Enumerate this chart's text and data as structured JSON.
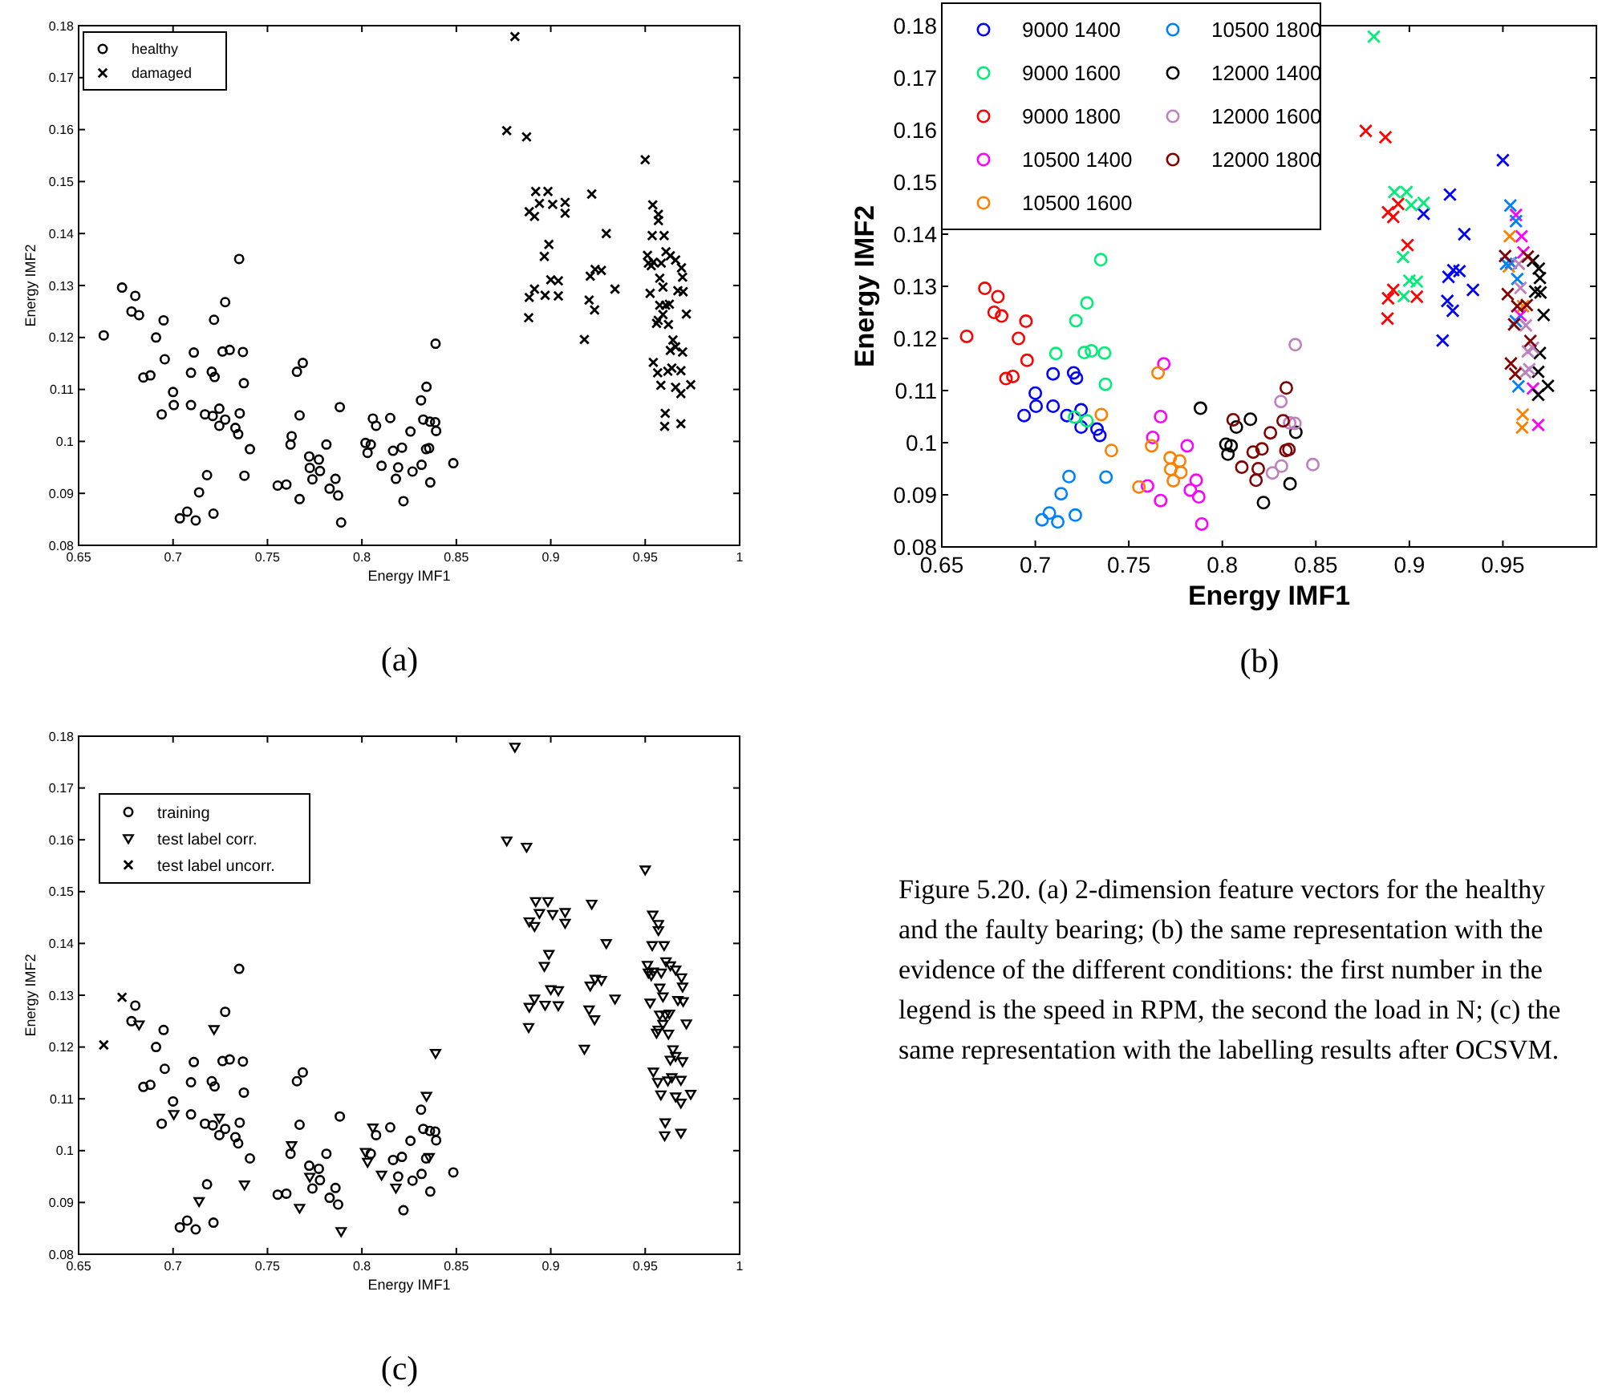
{
  "chart_data": [
    {
      "type": "scatter",
      "title": "(a)",
      "xlabel": "Energy IMF1",
      "ylabel": "Energy IMF2",
      "xlim": [
        0.65,
        1
      ],
      "ylim": [
        0.08,
        0.18
      ],
      "xticks": [
        0.65,
        0.7,
        0.75,
        0.8,
        0.85,
        0.9,
        0.95,
        1
      ],
      "yticks": [
        0.08,
        0.09,
        0.1,
        0.11,
        0.12,
        0.13,
        0.14,
        0.15,
        0.16,
        0.17,
        0.18
      ],
      "legend": "top left",
      "series": [
        {
          "name": "healthy",
          "color": "#000000",
          "marker": "circle",
          "x": [
            0.7,
            0.7004,
            0.694,
            0.7095,
            0.7095,
            0.7205,
            0.722,
            0.7169,
            0.7245,
            0.7245,
            0.733,
            0.7345,
            0.735,
            0.7276,
            0.7217,
            0.711,
            0.7262,
            0.73,
            0.737,
            0.7375,
            0.721,
            0.7276,
            0.6633,
            0.673,
            0.68,
            0.678,
            0.682,
            0.695,
            0.691,
            0.6956,
            0.6843,
            0.688,
            0.7687,
            0.767,
            0.7628,
            0.76,
            0.767,
            0.7812,
            0.786,
            0.7829,
            0.7874,
            0.789,
            0.7353,
            0.7407,
            0.7656,
            0.7622,
            0.7554,
            0.7721,
            0.7772,
            0.7724,
            0.7738,
            0.7778,
            0.718,
            0.7138,
            0.7036,
            0.7075,
            0.712,
            0.7214,
            0.7378,
            0.7883,
            0.815,
            0.8075,
            0.8019,
            0.8047,
            0.803,
            0.822,
            0.8362,
            0.8393,
            0.8313,
            0.836,
            0.8388,
            0.8268,
            0.8316,
            0.8484,
            0.839,
            0.8058,
            0.8104,
            0.8165,
            0.8192,
            0.818,
            0.8212,
            0.8257,
            0.8342,
            0.8325,
            0.834,
            0.8356
          ],
          "values": [
            0.1095,
            0.107,
            0.1052,
            0.107,
            0.1132,
            0.1134,
            0.1124,
            0.1052,
            0.1063,
            0.103,
            0.1026,
            0.1014,
            0.1351,
            0.1268,
            0.1234,
            0.1171,
            0.1173,
            0.1176,
            0.1172,
            0.1112,
            0.1049,
            0.1042,
            0.1204,
            0.1296,
            0.128,
            0.125,
            0.1243,
            0.1233,
            0.12,
            0.1158,
            0.1123,
            0.1127,
            0.1151,
            0.105,
            0.101,
            0.0917,
            0.0889,
            0.0994,
            0.0928,
            0.0909,
            0.0896,
            0.0844,
            0.1054,
            0.0985,
            0.1134,
            0.0994,
            0.0915,
            0.0971,
            0.0965,
            0.0949,
            0.0927,
            0.0943,
            0.0935,
            0.0902,
            0.0852,
            0.0865,
            0.0848,
            0.0861,
            0.0934,
            0.1066,
            0.1045,
            0.103,
            0.0997,
            0.0994,
            0.0978,
            0.0885,
            0.0921,
            0.102,
            0.1079,
            0.1038,
            0.1037,
            0.0942,
            0.0955,
            0.0958,
            0.1188,
            0.1044,
            0.0953,
            0.0982,
            0.095,
            0.0928,
            0.0988,
            0.1019,
            0.1105,
            0.1042,
            0.0985,
            0.0987
          ]
        },
        {
          "name": "damaged",
          "color": "#000000",
          "marker": "cross",
          "x": [
            0.8767,
            0.8872,
            0.8886,
            0.8914,
            0.894,
            0.899,
            0.8914,
            0.8886,
            0.904,
            0.8883,
            0.881,
            0.892,
            0.8985,
            0.901,
            0.9076,
            0.8966,
            0.9,
            0.904,
            0.897,
            0.9076,
            0.9217,
            0.9294,
            0.9209,
            0.9235,
            0.9268,
            0.934,
            0.9203,
            0.9232,
            0.9178,
            0.95,
            0.954,
            0.957,
            0.9517,
            0.9543,
            0.9577,
            0.9569,
            0.9583,
            0.957,
            0.96,
            0.961,
            0.9594,
            0.9661,
            0.9689,
            0.9537,
            0.9532,
            0.9608,
            0.9606,
            0.9603,
            0.9661,
            0.9692,
            0.9698,
            0.9673,
            0.9701,
            0.9718,
            0.9698,
            0.9689,
            0.9741,
            0.9689,
            0.9512,
            0.9526,
            0.9577,
            0.9628,
            0.956,
            0.9647,
            0.9543,
            0.9566,
            0.9633,
            0.9585,
            0.9594,
            0.9623,
            0.9661,
            0.962,
            0.9641,
            0.9633
          ],
          "values": [
            0.1598,
            0.1586,
            0.1442,
            0.1433,
            0.1458,
            0.1379,
            0.1293,
            0.1277,
            0.128,
            0.1238,
            0.1779,
            0.1481,
            0.1481,
            0.1456,
            0.146,
            0.1356,
            0.1311,
            0.1309,
            0.1281,
            0.1439,
            0.1476,
            0.14,
            0.1318,
            0.1331,
            0.1329,
            0.1293,
            0.1272,
            0.1253,
            0.1196,
            0.1542,
            0.1455,
            0.1425,
            0.1343,
            0.1345,
            0.1314,
            0.1233,
            0.1108,
            0.1437,
            0.1396,
            0.1365,
            0.1244,
            0.1104,
            0.1034,
            0.1396,
            0.1338,
            0.1262,
            0.1054,
            0.1029,
            0.1349,
            0.1334,
            0.1316,
            0.129,
            0.1288,
            0.1245,
            0.1172,
            0.1136,
            0.1109,
            0.1092,
            0.1358,
            0.1285,
            0.1262,
            0.1264,
            0.1227,
            0.1195,
            0.1152,
            0.1132,
            0.1357,
            0.1343,
            0.1297,
            0.1225,
            0.1182,
            0.1135,
            0.1141,
            0.1175
          ]
        }
      ]
    },
    {
      "type": "scatter",
      "title": "(b)",
      "xlabel": "Energy IMF1",
      "ylabel": "Energy IMF2",
      "xlim": [
        0.65,
        1
      ],
      "ylim": [
        0.08,
        0.18
      ],
      "xticks": [
        0.65,
        0.7,
        0.75,
        0.8,
        0.85,
        0.9,
        0.95
      ],
      "yticks": [
        0.08,
        0.09,
        0.1,
        0.11,
        0.12,
        0.13,
        0.14,
        0.15,
        0.16,
        0.17,
        0.18
      ],
      "legend": "top left",
      "series": [
        {
          "name": "9000 1400",
          "color": "#0000ff",
          "marker": "circle",
          "x": [
            0.7,
            0.7004,
            0.694,
            0.7095,
            0.7095,
            0.7205,
            0.722,
            0.7169,
            0.7245,
            0.7245,
            0.733,
            0.7345
          ],
          "values": [
            0.1095,
            0.107,
            0.1052,
            0.107,
            0.1132,
            0.1134,
            0.1124,
            0.1052,
            0.1063,
            0.103,
            0.1026,
            0.1014
          ]
        },
        {
          "name": "9000 1600",
          "color": "#00ee77",
          "marker": "circle",
          "x": [
            0.735,
            0.7276,
            0.7217,
            0.711,
            0.7262,
            0.73,
            0.737,
            0.7375,
            0.721,
            0.7276
          ],
          "values": [
            0.1351,
            0.1268,
            0.1234,
            0.1171,
            0.1173,
            0.1176,
            0.1172,
            0.1112,
            0.1049,
            0.1042
          ]
        },
        {
          "name": "9000 1800",
          "color": "#ff0000",
          "marker": "circle",
          "x": [
            0.6633,
            0.673,
            0.68,
            0.678,
            0.682,
            0.695,
            0.691,
            0.6956,
            0.6843,
            0.688
          ],
          "values": [
            0.1204,
            0.1296,
            0.128,
            0.125,
            0.1243,
            0.1233,
            0.12,
            0.1158,
            0.1123,
            0.1127
          ]
        },
        {
          "name": "10500 1400",
          "color": "#ff00ff",
          "marker": "circle",
          "x": [
            0.7687,
            0.767,
            0.7628,
            0.76,
            0.767,
            0.7812,
            0.786,
            0.7829,
            0.7874,
            0.789
          ],
          "values": [
            0.1151,
            0.105,
            0.101,
            0.0917,
            0.0889,
            0.0994,
            0.0928,
            0.0909,
            0.0896,
            0.0844
          ]
        },
        {
          "name": "10500 1600",
          "color": "#ff8000",
          "marker": "circle",
          "x": [
            0.7353,
            0.7407,
            0.7656,
            0.7622,
            0.7554,
            0.7721,
            0.7772,
            0.7724,
            0.7738,
            0.7778
          ],
          "values": [
            0.1054,
            0.0985,
            0.1134,
            0.0994,
            0.0915,
            0.0971,
            0.0965,
            0.0949,
            0.0927,
            0.0943
          ]
        },
        {
          "name": "10500 1800",
          "color": "#0080ff",
          "marker": "circle",
          "x": [
            0.718,
            0.7138,
            0.7036,
            0.7075,
            0.712,
            0.7214,
            0.7378
          ],
          "values": [
            0.0935,
            0.0902,
            0.0852,
            0.0865,
            0.0848,
            0.0861,
            0.0934
          ]
        },
        {
          "name": "12000 1400",
          "color": "#000000",
          "marker": "circle",
          "x": [
            0.7883,
            0.815,
            0.8075,
            0.8019,
            0.8047,
            0.803,
            0.822,
            0.8362,
            0.8393
          ],
          "values": [
            0.1066,
            0.1045,
            0.103,
            0.0997,
            0.0994,
            0.0978,
            0.0885,
            0.0921,
            0.102
          ]
        },
        {
          "name": "12000 1600",
          "color": "#bf80bf",
          "marker": "circle",
          "x": [
            0.8313,
            0.836,
            0.8388,
            0.8268,
            0.8316,
            0.8484,
            0.839
          ],
          "values": [
            0.1079,
            0.1038,
            0.1037,
            0.0942,
            0.0955,
            0.0958,
            0.1188
          ]
        },
        {
          "name": "12000 1800",
          "color": "#800000",
          "marker": "circle",
          "x": [
            0.8058,
            0.8104,
            0.8165,
            0.8192,
            0.818,
            0.8212,
            0.8257,
            0.8342,
            0.8325,
            0.834,
            0.8356
          ],
          "values": [
            0.1044,
            0.0953,
            0.0982,
            0.095,
            0.0928,
            0.0988,
            0.1019,
            0.1105,
            0.1042,
            0.0985,
            0.0987
          ]
        },
        {
          "color": "#0000ff",
          "marker": "cross",
          "x": [
            0.9076,
            0.9217,
            0.9294,
            0.9209,
            0.9235,
            0.9268,
            0.934,
            0.9203,
            0.9232,
            0.9178,
            0.95
          ],
          "values": [
            0.1439,
            0.1476,
            0.14,
            0.1318,
            0.1331,
            0.1329,
            0.1293,
            0.1272,
            0.1253,
            0.1196,
            0.1542
          ]
        },
        {
          "color": "#00ee77",
          "marker": "cross",
          "x": [
            0.881,
            0.892,
            0.8985,
            0.901,
            0.9076,
            0.8966,
            0.9,
            0.904,
            0.897
          ],
          "values": [
            0.1779,
            0.1481,
            0.1481,
            0.1456,
            0.146,
            0.1356,
            0.1311,
            0.1309,
            0.1281
          ]
        },
        {
          "color": "#ff0000",
          "marker": "cross",
          "x": [
            0.8767,
            0.8872,
            0.8886,
            0.8914,
            0.894,
            0.899,
            0.8914,
            0.8886,
            0.904,
            0.8883
          ],
          "values": [
            0.1598,
            0.1586,
            0.1442,
            0.1433,
            0.1458,
            0.1379,
            0.1293,
            0.1277,
            0.128,
            0.1238
          ]
        },
        {
          "color": "#ff00ff",
          "marker": "cross",
          "x": [
            0.957,
            0.96,
            0.961,
            0.9594,
            0.9661,
            0.9689
          ],
          "values": [
            0.1437,
            0.1396,
            0.1365,
            0.1244,
            0.1104,
            0.1034
          ]
        },
        {
          "color": "#ff8000",
          "marker": "cross",
          "x": [
            0.9537,
            0.9532,
            0.9608,
            0.9606,
            0.9603
          ],
          "values": [
            0.1396,
            0.1338,
            0.1262,
            0.1054,
            0.1029
          ]
        },
        {
          "color": "#0080ff",
          "marker": "cross",
          "x": [
            0.954,
            0.957,
            0.9517,
            0.9543,
            0.9577,
            0.9569,
            0.9583
          ],
          "values": [
            0.1455,
            0.1425,
            0.1343,
            0.1345,
            0.1314,
            0.1233,
            0.1108
          ]
        },
        {
          "color": "#000000",
          "marker": "cross",
          "x": [
            0.9661,
            0.9692,
            0.9698,
            0.9673,
            0.9701,
            0.9718,
            0.9698,
            0.9689,
            0.9741,
            0.9689
          ],
          "values": [
            0.1349,
            0.1334,
            0.1316,
            0.129,
            0.1288,
            0.1245,
            0.1172,
            0.1136,
            0.1109,
            0.1092
          ]
        },
        {
          "color": "#bf80bf",
          "marker": "cross",
          "x": [
            0.9585,
            0.9594,
            0.9623,
            0.9661,
            0.962,
            0.9641,
            0.9633
          ],
          "values": [
            0.1343,
            0.1297,
            0.1225,
            0.1182,
            0.1135,
            0.1141,
            0.1175
          ]
        },
        {
          "color": "#800000",
          "marker": "cross",
          "x": [
            0.9512,
            0.9526,
            0.9577,
            0.9628,
            0.956,
            0.9647,
            0.9543,
            0.9566,
            0.9633
          ],
          "values": [
            0.1358,
            0.1285,
            0.1262,
            0.1264,
            0.1227,
            0.1195,
            0.1152,
            0.1132,
            0.1357
          ]
        }
      ]
    },
    {
      "type": "scatter",
      "title": "(c)",
      "xlabel": "Energy IMF1",
      "ylabel": "Energy IMF2",
      "xlim": [
        0.65,
        1
      ],
      "ylim": [
        0.08,
        0.18
      ],
      "xticks": [
        0.65,
        0.7,
        0.75,
        0.8,
        0.85,
        0.9,
        0.95,
        1
      ],
      "yticks": [
        0.08,
        0.09,
        0.1,
        0.11,
        0.12,
        0.13,
        0.14,
        0.15,
        0.16,
        0.17,
        0.18
      ],
      "legend": "top left",
      "series": [
        {
          "name": "training",
          "color": "#000000",
          "marker": "circle",
          "x": [
            0.68,
            0.678,
            0.695,
            0.691,
            0.6956,
            0.6843,
            0.688,
            0.7,
            0.694,
            0.7095,
            0.7095,
            0.7205,
            0.722,
            0.7169,
            0.7245,
            0.733,
            0.7345,
            0.735,
            0.7276,
            0.711,
            0.7262,
            0.73,
            0.737,
            0.7375,
            0.721,
            0.7276,
            0.7687,
            0.767,
            0.76,
            0.7812,
            0.786,
            0.7829,
            0.7874,
            0.7353,
            0.7407,
            0.7656,
            0.7622,
            0.7554,
            0.7721,
            0.7772,
            0.7738,
            0.7778,
            0.718,
            0.7036,
            0.7075,
            0.712,
            0.7214,
            0.7883,
            0.815,
            0.8075,
            0.8047,
            0.822,
            0.8362,
            0.8393,
            0.8313,
            0.836,
            0.8388,
            0.8268,
            0.8316,
            0.8484,
            0.8165,
            0.8192,
            0.8212,
            0.8257,
            0.8325,
            0.834
          ],
          "values": [
            0.128,
            0.125,
            0.1233,
            0.12,
            0.1158,
            0.1123,
            0.1127,
            0.1095,
            0.1052,
            0.107,
            0.1132,
            0.1134,
            0.1124,
            0.1052,
            0.103,
            0.1026,
            0.1014,
            0.1351,
            0.1268,
            0.1171,
            0.1173,
            0.1176,
            0.1172,
            0.1112,
            0.1049,
            0.1042,
            0.1151,
            0.105,
            0.0917,
            0.0994,
            0.0928,
            0.0909,
            0.0896,
            0.1054,
            0.0985,
            0.1134,
            0.0994,
            0.0915,
            0.0971,
            0.0965,
            0.0927,
            0.0943,
            0.0935,
            0.0852,
            0.0865,
            0.0848,
            0.0861,
            0.1066,
            0.1045,
            0.103,
            0.0994,
            0.0885,
            0.0921,
            0.102,
            0.1079,
            0.1038,
            0.1037,
            0.0942,
            0.0955,
            0.0958,
            0.0982,
            0.095,
            0.0988,
            0.1019,
            0.1042,
            0.0985
          ]
        },
        {
          "name": "test label corr.",
          "color": "#000000",
          "marker": "triangle",
          "x": [
            0.682,
            0.7217,
            0.7004,
            0.7245,
            0.7138,
            0.7378,
            0.7628,
            0.7724,
            0.767,
            0.789,
            0.8019,
            0.803,
            0.8058,
            0.8104,
            0.818,
            0.8342,
            0.839,
            0.8356,
            0.8767,
            0.8872,
            0.8886,
            0.8914,
            0.894,
            0.899,
            0.8914,
            0.8886,
            0.904,
            0.8883,
            0.881,
            0.892,
            0.8985,
            0.901,
            0.9076,
            0.8966,
            0.9,
            0.904,
            0.897,
            0.9076,
            0.9217,
            0.9294,
            0.9209,
            0.9235,
            0.9268,
            0.934,
            0.9203,
            0.9232,
            0.9178,
            0.95,
            0.954,
            0.957,
            0.9517,
            0.9543,
            0.9577,
            0.9569,
            0.9583,
            0.957,
            0.96,
            0.961,
            0.9594,
            0.9661,
            0.9689,
            0.9537,
            0.9532,
            0.9608,
            0.9606,
            0.9603,
            0.9661,
            0.9692,
            0.9698,
            0.9673,
            0.9701,
            0.9718,
            0.9698,
            0.9689,
            0.9741,
            0.9689,
            0.9512,
            0.9526,
            0.9577,
            0.9628,
            0.956,
            0.9647,
            0.9543,
            0.9566,
            0.9633,
            0.9585,
            0.9594,
            0.9623,
            0.9661,
            0.962,
            0.9641,
            0.9633
          ],
          "values": [
            0.1243,
            0.1234,
            0.107,
            0.1063,
            0.0902,
            0.0934,
            0.101,
            0.0949,
            0.0889,
            0.0844,
            0.0997,
            0.0978,
            0.1044,
            0.0953,
            0.0928,
            0.1105,
            0.1188,
            0.0987,
            0.1598,
            0.1586,
            0.1442,
            0.1433,
            0.1458,
            0.1379,
            0.1293,
            0.1277,
            0.128,
            0.1238,
            0.1779,
            0.1481,
            0.1481,
            0.1456,
            0.146,
            0.1356,
            0.1311,
            0.1309,
            0.1281,
            0.1439,
            0.1476,
            0.14,
            0.1318,
            0.1331,
            0.1329,
            0.1293,
            0.1272,
            0.1253,
            0.1196,
            0.1542,
            0.1455,
            0.1425,
            0.1343,
            0.1345,
            0.1314,
            0.1233,
            0.1108,
            0.1437,
            0.1396,
            0.1365,
            0.1244,
            0.1104,
            0.1034,
            0.1396,
            0.1338,
            0.1262,
            0.1054,
            0.1029,
            0.1349,
            0.1334,
            0.1316,
            0.129,
            0.1288,
            0.1245,
            0.1172,
            0.1136,
            0.1109,
            0.1092,
            0.1358,
            0.1285,
            0.1262,
            0.1264,
            0.1227,
            0.1195,
            0.1152,
            0.1132,
            0.1357,
            0.1343,
            0.1297,
            0.1225,
            0.1182,
            0.1135,
            0.1141,
            0.1175
          ]
        },
        {
          "name": "test label uncorr.",
          "color": "#000000",
          "marker": "cross",
          "x": [
            0.673,
            0.6633
          ],
          "values": [
            0.1296,
            0.1204
          ]
        }
      ]
    },
    {
      "type": "other",
      "annotations": [
        "Figure 5.20. (a) 2-dimension feature vectors for the healthy and the faulty bearing; (b) the same representation with the evidence of the different conditions: the first number in the legend is the speed in RPM, the second the load in N; (c) the same representation with the labelling results after OCSVM."
      ]
    }
  ]
}
